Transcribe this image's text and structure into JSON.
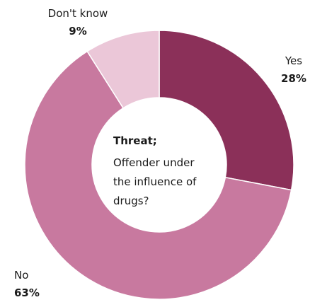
{
  "chart_data": {
    "type": "pie",
    "variant": "donut",
    "center_text": {
      "title": "Threat;",
      "lines": [
        "Offender under",
        "the influence of",
        "drugs?"
      ]
    },
    "slices": [
      {
        "label": "Yes",
        "value": 28,
        "value_label": "28%",
        "color": "#8b3059"
      },
      {
        "label": "No",
        "value": 63,
        "value_label": "63%",
        "color": "#c8799f"
      },
      {
        "label": "Don't know",
        "value": 9,
        "value_label": "9%",
        "color": "#ebc7d8"
      }
    ],
    "start_angle_deg": 0,
    "direction": "clockwise"
  }
}
